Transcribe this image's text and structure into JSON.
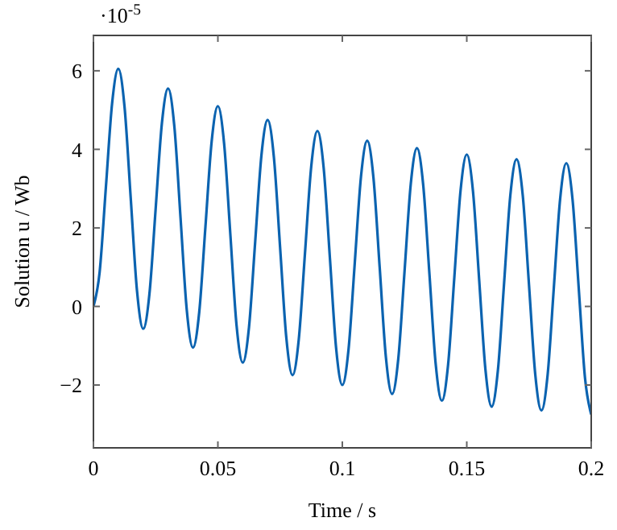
{
  "chart_data": {
    "type": "line",
    "xlabel": "Time / s",
    "ylabel": "Solution u / Wb",
    "annotations": [
      "·10$^{-5}$"
    ],
    "x": [
      0,
      0.0025,
      0.005,
      0.0075,
      0.01,
      0.0125,
      0.015,
      0.0175,
      0.02,
      0.0225,
      0.025,
      0.0275,
      0.03,
      0.0325,
      0.035,
      0.0375,
      0.04,
      0.0425,
      0.045,
      0.0475,
      0.05,
      0.0525,
      0.055,
      0.0575,
      0.06,
      0.0625,
      0.065,
      0.0675,
      0.07,
      0.0725,
      0.075,
      0.0775,
      0.08,
      0.0825,
      0.085,
      0.0875,
      0.09,
      0.0925,
      0.095,
      0.0975,
      0.1,
      0.1025,
      0.105,
      0.1075,
      0.11,
      0.1125,
      0.115,
      0.1175,
      0.12,
      0.1225,
      0.125,
      0.1275,
      0.13,
      0.1325,
      0.135,
      0.1375,
      0.14,
      0.1425,
      0.145,
      0.1475,
      0.15,
      0.1525,
      0.155,
      0.1575,
      0.16,
      0.1625,
      0.165,
      0.1675,
      0.17,
      0.1725,
      0.175,
      0.1775,
      0.18,
      0.1825,
      0.185,
      0.1875,
      0.19,
      0.1925,
      0.195,
      0.1975,
      0.2
    ],
    "series": [
      {
        "color": "#0b63b0",
        "values": [
          0,
          0.88,
          3.03,
          5.17,
          6.05,
          5.08,
          2.74,
          0.4,
          -0.57,
          0.32,
          2.49,
          4.66,
          5.55,
          4.59,
          2.25,
          -0.09,
          -1.05,
          -0.15,
          2.03,
          4.2,
          5.1,
          4.15,
          1.84,
          -0.48,
          -1.43,
          -0.53,
          1.66,
          3.85,
          4.75,
          3.8,
          1.5,
          -0.8,
          -1.75,
          -0.84,
          1.36,
          3.56,
          4.47,
          3.53,
          1.24,
          -1.06,
          -2.0,
          -1.09,
          1.11,
          3.31,
          4.22,
          3.28,
          1.0,
          -1.29,
          -2.23,
          -1.32,
          0.9,
          3.12,
          4.03,
          3.09,
          0.82,
          -1.46,
          -2.4,
          -1.48,
          0.74,
          2.95,
          3.87,
          2.93,
          0.66,
          -1.61,
          -2.55,
          -1.63,
          0.6,
          2.83,
          3.75,
          2.82,
          0.55,
          -1.72,
          -2.65,
          -1.73,
          0.5,
          2.73,
          3.65,
          2.72,
          0.45,
          -1.82,
          -2.75
        ]
      }
    ],
    "xlim": [
      0,
      0.2
    ],
    "ylim": [
      -3.6,
      6.9
    ],
    "xticks": [
      0,
      0.05,
      0.1,
      0.15,
      0.2
    ],
    "yticks": [
      {
        "value": -2,
        "label": "−2"
      },
      0,
      2,
      4,
      6
    ],
    "grid": false,
    "line_style": "solid",
    "marker": "none"
  }
}
